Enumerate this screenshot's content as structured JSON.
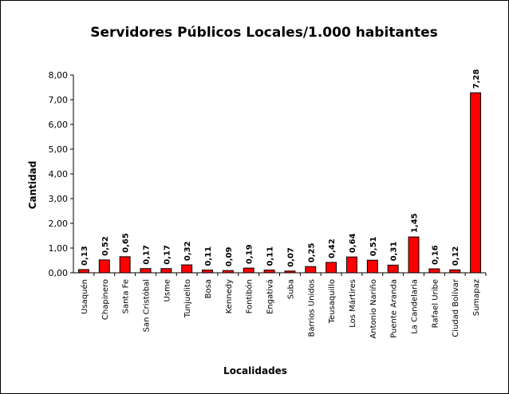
{
  "chart_data": {
    "type": "bar",
    "title": "Servidores Públicos Locales/1.000 habitantes",
    "xlabel": "Localidades",
    "ylabel": "Cantidad",
    "ylim": [
      0,
      8
    ],
    "yticks": [
      "0,00",
      "1,00",
      "2,00",
      "3,00",
      "4,00",
      "5,00",
      "6,00",
      "7,00",
      "8,00"
    ],
    "grid": false,
    "legend": "none",
    "bar_color": "#ff0000",
    "categories": [
      "Usaquén",
      "Chapinero",
      "Santa Fe",
      "San Cristóbal",
      "Usme",
      "Tunjuelito",
      "Bosa",
      "Kennedy",
      "Fontibón",
      "Engativá",
      "Suba",
      "Barrios Unidos",
      "Teusaquillo",
      "Los Mártires",
      "Antonio Nariño",
      "Puente Aranda",
      "La Candelaria",
      "Rafael Uribe",
      "Ciudad Bolívar",
      "Sumapaz"
    ],
    "values": [
      0.13,
      0.52,
      0.65,
      0.17,
      0.17,
      0.32,
      0.11,
      0.09,
      0.19,
      0.11,
      0.07,
      0.25,
      0.42,
      0.64,
      0.51,
      0.31,
      1.45,
      0.16,
      0.12,
      7.28
    ],
    "value_labels": [
      "0,13",
      "0,52",
      "0,65",
      "0,17",
      "0,17",
      "0,32",
      "0,11",
      "0,09",
      "0,19",
      "0,11",
      "0,07",
      "0,25",
      "0,42",
      "0,64",
      "0,51",
      "0,31",
      "1,45",
      "0,16",
      "0,12",
      "7,28"
    ]
  }
}
